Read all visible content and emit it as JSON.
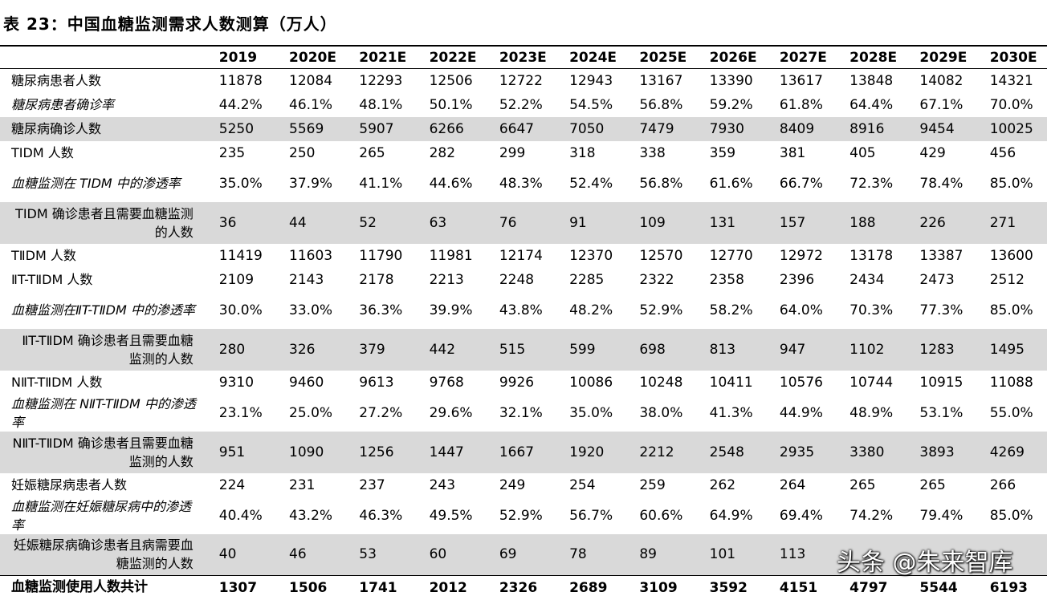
{
  "title": "表 23：中国血糖监测需求人数测算（万人）",
  "columns": [
    "2019",
    "2020E",
    "2021E",
    "2022E",
    "2023E",
    "2024E",
    "2025E",
    "2026E",
    "2027E",
    "2028E",
    "2029E",
    "2030E"
  ],
  "rows": [
    {
      "label": "糖尿病患者人数",
      "values": [
        "11878",
        "12084",
        "12293",
        "12506",
        "12722",
        "12943",
        "13167",
        "13390",
        "13617",
        "13848",
        "14082",
        "14321"
      ]
    },
    {
      "label": "糖尿病患者确诊率",
      "values": [
        "44.2%",
        "46.1%",
        "48.1%",
        "50.1%",
        "52.2%",
        "54.5%",
        "56.8%",
        "59.2%",
        "61.8%",
        "64.4%",
        "67.1%",
        "70.0%"
      ]
    },
    {
      "label": "糖尿病确诊人数",
      "values": [
        "5250",
        "5569",
        "5907",
        "6266",
        "6647",
        "7050",
        "7479",
        "7930",
        "8409",
        "8916",
        "9454",
        "10025"
      ]
    },
    {
      "label": "TⅠDM 人数",
      "values": [
        "235",
        "250",
        "265",
        "282",
        "299",
        "318",
        "338",
        "359",
        "381",
        "405",
        "429",
        "456"
      ]
    },
    {
      "label": "血糖监测在 TⅠDM 中的渗透率",
      "values": [
        "35.0%",
        "37.9%",
        "41.1%",
        "44.6%",
        "48.3%",
        "52.4%",
        "56.8%",
        "61.6%",
        "66.7%",
        "72.3%",
        "78.4%",
        "85.0%"
      ]
    },
    {
      "label": "TⅠDM 确诊患者且需要血糖监测的人数",
      "values": [
        "36",
        "44",
        "52",
        "63",
        "76",
        "91",
        "109",
        "131",
        "157",
        "188",
        "226",
        "271"
      ]
    },
    {
      "label": "TⅡDM 人数",
      "values": [
        "11419",
        "11603",
        "11790",
        "11981",
        "12174",
        "12370",
        "12570",
        "12770",
        "12972",
        "13178",
        "13387",
        "13600"
      ]
    },
    {
      "label": "ⅡT-TⅡDM 人数",
      "values": [
        "2109",
        "2143",
        "2178",
        "2213",
        "2248",
        "2285",
        "2322",
        "2358",
        "2396",
        "2434",
        "2473",
        "2512"
      ]
    },
    {
      "label": "血糖监测在ⅡT-TⅡDM 中的渗透率",
      "values": [
        "30.0%",
        "33.0%",
        "36.3%",
        "39.9%",
        "43.8%",
        "48.2%",
        "52.9%",
        "58.2%",
        "64.0%",
        "70.3%",
        "77.3%",
        "85.0%"
      ]
    },
    {
      "label": "ⅡT-TⅡDM 确诊患者且需要血糖监测的人数",
      "values": [
        "280",
        "326",
        "379",
        "442",
        "515",
        "599",
        "698",
        "813",
        "947",
        "1102",
        "1283",
        "1495"
      ]
    },
    {
      "label": "NⅡT-TⅡDM 人数",
      "values": [
        "9310",
        "9460",
        "9613",
        "9768",
        "9926",
        "10086",
        "10248",
        "10411",
        "10576",
        "10744",
        "10915",
        "11088"
      ]
    },
    {
      "label": "血糖监测在 NⅡT-TⅡDM 中的渗透率",
      "values": [
        "23.1%",
        "25.0%",
        "27.2%",
        "29.6%",
        "32.1%",
        "35.0%",
        "38.0%",
        "41.3%",
        "44.9%",
        "48.9%",
        "53.1%",
        "55.0%"
      ]
    },
    {
      "label": "NⅡT-TⅡDM 确诊患者且需要血糖监测的人数",
      "values": [
        "951",
        "1090",
        "1256",
        "1447",
        "1667",
        "1920",
        "2212",
        "2548",
        "2935",
        "3380",
        "3893",
        "4269"
      ]
    },
    {
      "label": "妊娠糖尿病患者人数",
      "values": [
        "224",
        "231",
        "237",
        "243",
        "249",
        "254",
        "259",
        "262",
        "264",
        "265",
        "265",
        "266"
      ]
    },
    {
      "label": "血糖监测在妊娠糖尿病中的渗透率",
      "values": [
        "40.4%",
        "43.2%",
        "46.3%",
        "49.5%",
        "52.9%",
        "56.7%",
        "60.6%",
        "64.9%",
        "69.4%",
        "74.2%",
        "79.4%",
        "85.0%"
      ]
    },
    {
      "label": "妊娠糖尿病确诊患者且病需要血糖监测的人数",
      "values": [
        "40",
        "46",
        "53",
        "60",
        "69",
        "78",
        "89",
        "101",
        "113",
        "",
        "",
        ""
      ]
    },
    {
      "label": "血糖监测使用人数共计",
      "values": [
        "1307",
        "1506",
        "1741",
        "2012",
        "2326",
        "2689",
        "3109",
        "3592",
        "4151",
        "4797",
        "5544",
        "6193"
      ]
    }
  ],
  "watermark": "头条 @朱来智库"
}
